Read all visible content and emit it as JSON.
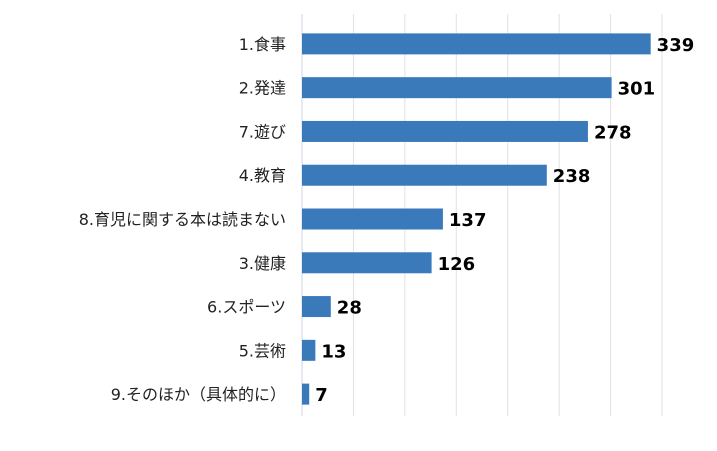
{
  "chart_data": {
    "type": "bar",
    "orientation": "horizontal",
    "title": "",
    "xlabel": "",
    "ylabel": "",
    "categories": [
      "1.食事",
      "2.発達",
      "7.遊び",
      "4.教育",
      "8.育児に関する本は読まない",
      "3.健康",
      "6.スポーツ",
      "5.芸術",
      "9.そのほか（具体的に）"
    ],
    "values": [
      339,
      301,
      278,
      238,
      137,
      126,
      28,
      13,
      7
    ],
    "xlim": [
      0,
      350
    ],
    "grid_step": 50,
    "grid": true,
    "tick_labels_shown": false,
    "bar_color": "#3a7aba",
    "grid_color": "#e2e2e2"
  }
}
